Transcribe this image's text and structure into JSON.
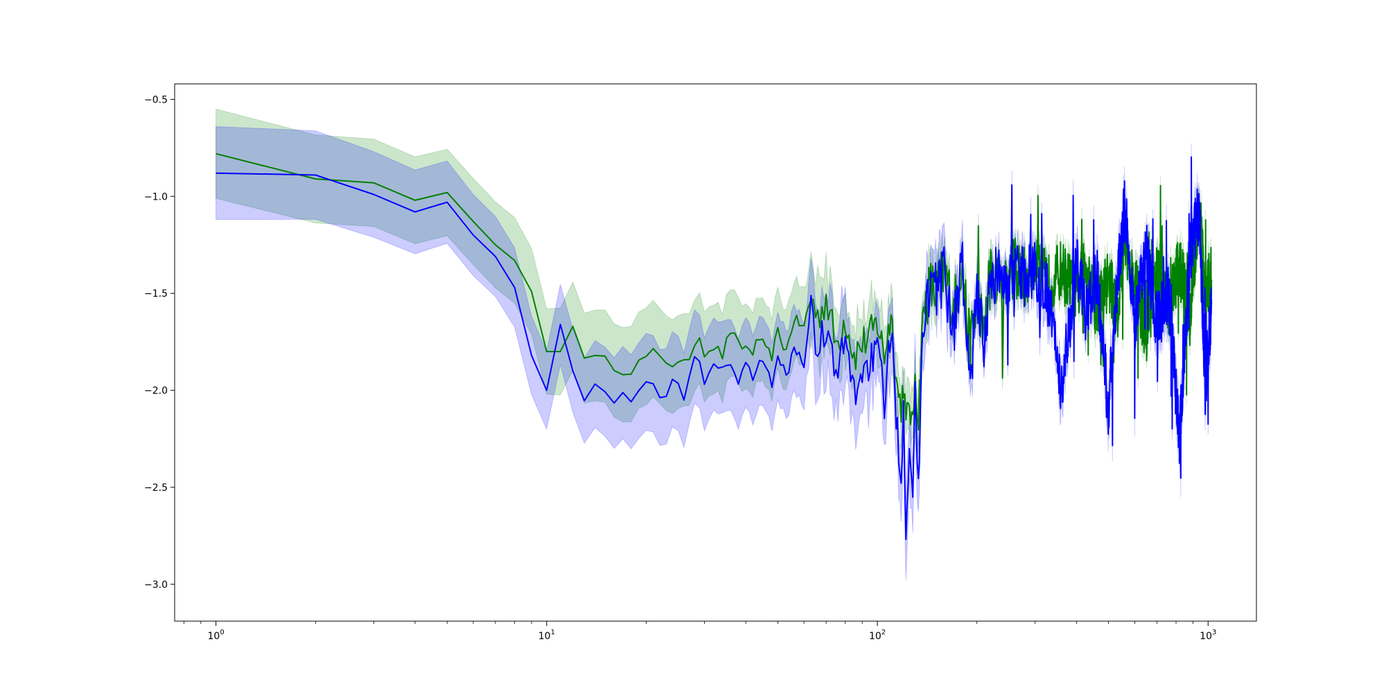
{
  "chart_data": {
    "type": "line",
    "title": "",
    "xlabel": "",
    "ylabel": "",
    "xscale": "log",
    "xlim": [
      0.75,
      1400
    ],
    "ylim": [
      -3.19,
      -0.42
    ],
    "grid": false,
    "legend": "none",
    "x_ticks": [
      {
        "base": "10",
        "exp": "0",
        "value": 1
      },
      {
        "base": "10",
        "exp": "1",
        "value": 10
      },
      {
        "base": "10",
        "exp": "2",
        "value": 100
      },
      {
        "base": "10",
        "exp": "3",
        "value": 1000
      }
    ],
    "y_ticks": [
      {
        "value": -0.5,
        "label": "−0.5"
      },
      {
        "value": -1.0,
        "label": "−1.0"
      },
      {
        "value": -1.5,
        "label": "−1.5"
      },
      {
        "value": -2.0,
        "label": "−2.0"
      },
      {
        "value": -2.5,
        "label": "−2.5"
      },
      {
        "value": -3.0,
        "label": "−3.0"
      }
    ],
    "series": [
      {
        "color": "#008000",
        "band_color": "#008000",
        "band_opacity": 0.2,
        "band_halfwidth": [
          [
            1,
            0.23
          ],
          [
            10,
            0.22
          ],
          [
            20,
            0.25
          ],
          [
            60,
            0.2
          ],
          [
            100,
            0.13
          ],
          [
            200,
            0.06
          ],
          [
            1000,
            0.05
          ]
        ],
        "x": [
          1,
          2,
          3,
          4,
          5,
          6,
          7,
          8,
          9,
          10,
          11,
          12,
          13,
          14,
          15,
          16,
          17,
          18,
          19,
          20,
          21,
          22,
          23,
          24,
          25,
          26,
          27,
          28,
          29,
          30,
          32,
          34,
          36,
          38,
          40,
          42,
          44,
          46,
          48,
          50,
          53,
          56,
          60,
          63,
          66,
          70,
          75,
          80,
          85,
          90,
          95,
          100,
          105,
          110,
          115,
          118,
          120,
          122,
          125,
          128,
          130,
          133,
          136,
          140,
          145,
          150,
          160,
          170,
          180,
          190,
          200,
          210,
          220,
          240,
          260,
          280,
          300,
          330,
          360,
          400,
          430,
          460,
          500,
          530,
          560,
          600,
          650,
          700,
          760,
          820,
          880,
          940,
          980,
          1024
        ],
        "y": [
          -0.78,
          -0.91,
          -0.93,
          -1.02,
          -0.98,
          -1.13,
          -1.25,
          -1.33,
          -1.49,
          -1.8,
          -1.8,
          -1.67,
          -1.81,
          -1.84,
          -1.85,
          -1.87,
          -1.89,
          -1.89,
          -1.86,
          -1.83,
          -1.81,
          -1.84,
          -1.85,
          -1.86,
          -1.84,
          -1.86,
          -1.87,
          -1.75,
          -1.72,
          -1.8,
          -1.77,
          -1.82,
          -1.69,
          -1.77,
          -1.78,
          -1.8,
          -1.73,
          -1.8,
          -1.82,
          -1.7,
          -1.8,
          -1.63,
          -1.68,
          -1.51,
          -1.63,
          -1.52,
          -1.77,
          -1.62,
          -1.82,
          -1.76,
          -1.72,
          -1.65,
          -1.82,
          -1.6,
          -2.0,
          -2.08,
          -1.95,
          -2.2,
          -2.05,
          -2.22,
          -1.9,
          -2.16,
          -1.7,
          -1.53,
          -1.47,
          -1.5,
          -1.38,
          -1.6,
          -1.32,
          -1.78,
          -1.55,
          -1.68,
          -1.4,
          -1.45,
          -1.37,
          -1.42,
          -1.36,
          -1.45,
          -1.38,
          -1.5,
          -1.35,
          -1.58,
          -1.42,
          -1.6,
          -1.26,
          -1.45,
          -1.7,
          -1.4,
          -1.55,
          -1.35,
          -1.62,
          -1.03,
          -1.55,
          -1.38
        ]
      },
      {
        "color": "#0000ff",
        "band_color": "#0000ff",
        "band_opacity": 0.2,
        "band_halfwidth": [
          [
            1,
            0.24
          ],
          [
            10,
            0.2
          ],
          [
            20,
            0.25
          ],
          [
            60,
            0.22
          ],
          [
            100,
            0.18
          ],
          [
            130,
            0.18
          ],
          [
            200,
            0.07
          ],
          [
            1000,
            0.07
          ]
        ],
        "x": [
          1,
          2,
          3,
          4,
          5,
          6,
          7,
          8,
          9,
          10,
          11,
          12,
          13,
          14,
          15,
          16,
          17,
          18,
          19,
          20,
          21,
          22,
          23,
          24,
          25,
          26,
          27,
          28,
          29,
          30,
          32,
          34,
          36,
          38,
          40,
          42,
          44,
          46,
          48,
          50,
          53,
          56,
          60,
          63,
          66,
          70,
          75,
          80,
          85,
          90,
          95,
          100,
          105,
          110,
          115,
          118,
          120,
          122,
          125,
          128,
          130,
          133,
          136,
          140,
          145,
          150,
          160,
          170,
          180,
          190,
          200,
          210,
          220,
          240,
          260,
          280,
          300,
          330,
          360,
          400,
          430,
          460,
          500,
          530,
          560,
          600,
          650,
          700,
          760,
          820,
          880,
          940,
          980,
          1024
        ],
        "y": [
          -0.88,
          -0.89,
          -0.99,
          -1.08,
          -1.03,
          -1.2,
          -1.31,
          -1.47,
          -1.82,
          -2.0,
          -1.66,
          -1.9,
          -2.03,
          -1.94,
          -1.98,
          -2.06,
          -2.04,
          -2.04,
          -1.99,
          -1.93,
          -1.98,
          -2.01,
          -2.02,
          -1.96,
          -1.99,
          -2.06,
          -1.93,
          -1.84,
          -1.87,
          -1.94,
          -1.84,
          -1.9,
          -1.85,
          -1.96,
          -1.87,
          -1.92,
          -1.85,
          -1.9,
          -1.96,
          -1.83,
          -1.93,
          -1.78,
          -1.86,
          -1.6,
          -1.79,
          -1.66,
          -1.95,
          -1.74,
          -2.02,
          -1.9,
          -1.85,
          -1.8,
          -2.05,
          -1.7,
          -2.2,
          -2.43,
          -2.1,
          -2.68,
          -2.25,
          -2.5,
          -2.0,
          -2.55,
          -1.8,
          -1.55,
          -1.45,
          -1.48,
          -1.4,
          -1.7,
          -1.3,
          -2.0,
          -1.52,
          -1.75,
          -1.4,
          -1.42,
          -1.36,
          -1.43,
          -1.38,
          -1.52,
          -2.0,
          -1.35,
          -1.62,
          -1.4,
          -2.1,
          -1.45,
          -1.05,
          -1.7,
          -1.25,
          -1.65,
          -1.5,
          -2.25,
          -1.3,
          -1.07,
          -1.98,
          -1.58
        ]
      }
    ]
  }
}
